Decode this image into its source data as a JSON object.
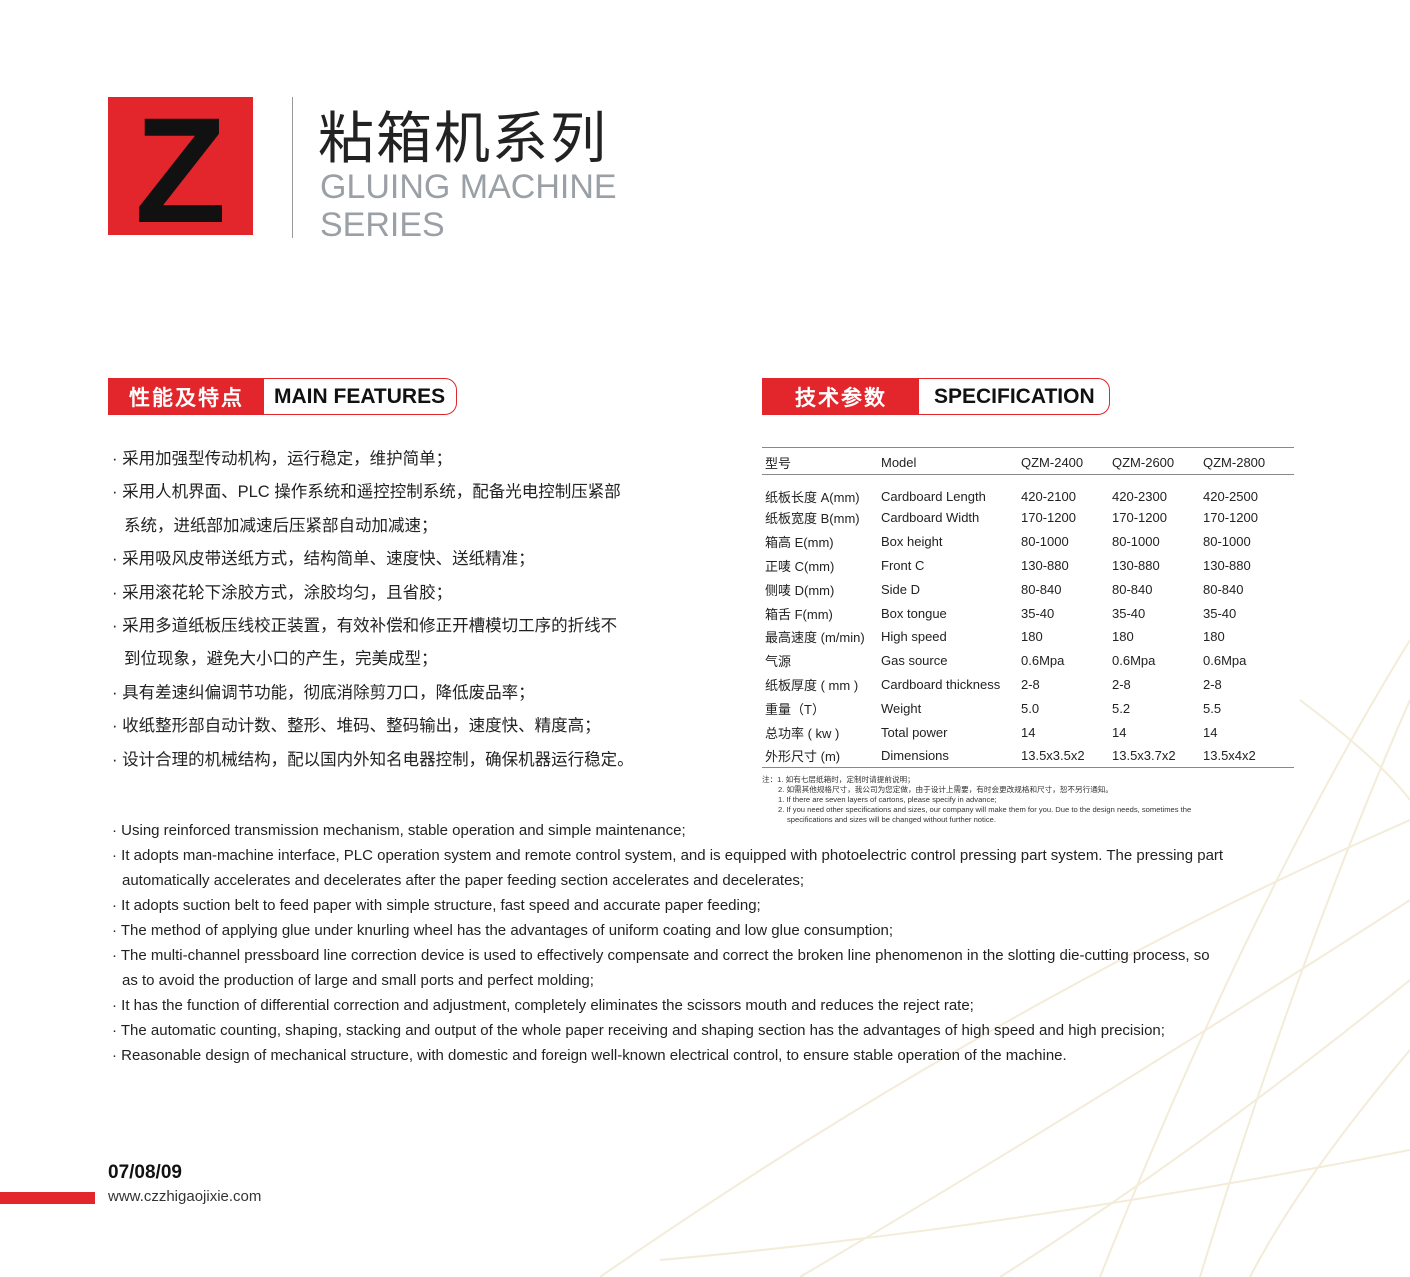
{
  "header": {
    "logo_letter": "Z",
    "title_cn": "粘箱机系列",
    "title_en_line1": "GLUING MACHINE",
    "title_en_line2": "SERIES"
  },
  "features": {
    "label_cn": "性能及特点",
    "label_en": "MAIN FEATURES",
    "items_cn": [
      [
        "· 采用加强型传动机构，运行稳定，维护简单；"
      ],
      [
        "· 采用人机界面、PLC 操作系统和遥控控制系统，配备光电控制压紧部",
        "系统，进纸部加减速后压紧部自动加减速；"
      ],
      [
        "· 采用吸风皮带送纸方式，结构简单、速度快、送纸精准；"
      ],
      [
        "· 采用滚花轮下涂胶方式，涂胶均匀，且省胶；"
      ],
      [
        "· 采用多道纸板压线校正装置，有效补偿和修正开槽模切工序的折线不",
        "到位现象，避免大小口的产生，完美成型；"
      ],
      [
        "· 具有差速纠偏调节功能，彻底消除剪刀口，降低废品率；"
      ],
      [
        "· 收纸整形部自动计数、整形、堆码、整码输出，速度快、精度高；"
      ],
      [
        "· 设计合理的机械结构，配以国内外知名电器控制，确保机器运行稳定。"
      ]
    ],
    "items_en": [
      [
        "· Using reinforced transmission mechanism, stable operation and simple maintenance;"
      ],
      [
        "· It adopts man-machine interface, PLC operation system and remote control system, and is equipped with photoelectric control pressing part system. The pressing part",
        "automatically accelerates and decelerates after the paper feeding section accelerates and decelerates;"
      ],
      [
        "· It adopts suction belt to feed paper with simple structure, fast speed and accurate paper feeding;"
      ],
      [
        "· The method of applying glue under knurling wheel has the advantages of uniform coating and low glue consumption;"
      ],
      [
        "· The multi-channel pressboard line correction device is used to effectively compensate and correct the broken line phenomenon in the slotting die-cutting process, so",
        "as to avoid the production of large and small ports and perfect molding;"
      ],
      [
        "· It has the function of differential correction and adjustment, completely eliminates the scissors mouth and reduces the reject rate;"
      ],
      [
        "· The automatic counting, shaping, stacking and output of the whole paper receiving and shaping section has the advantages of high speed and high precision;"
      ],
      [
        "· Reasonable design of mechanical structure, with domestic and foreign well-known electrical control, to ensure stable operation of the machine."
      ]
    ]
  },
  "spec": {
    "label_cn": "技术参数",
    "label_en": "SPECIFICATION",
    "header": [
      "型号",
      "Model",
      "QZM-2400",
      "QZM-2600",
      "QZM-2800"
    ],
    "rows": [
      [
        "纸板长度 A(mm)",
        "Cardboard Length",
        "420-2100",
        "420-2300",
        "420-2500"
      ],
      [
        "纸板宽度 B(mm)",
        "Cardboard Width",
        "170-1200",
        "170-1200",
        "170-1200"
      ],
      [
        "箱高 E(mm)",
        "Box height",
        "80-1000",
        "80-1000",
        "80-1000"
      ],
      [
        "正唛 C(mm)",
        "Front C",
        "130-880",
        "130-880",
        "130-880"
      ],
      [
        "侧唛 D(mm)",
        "Side D",
        "80-840",
        "80-840",
        "80-840"
      ],
      [
        "箱舌 F(mm)",
        "Box tongue",
        "35-40",
        "35-40",
        "35-40"
      ],
      [
        "最高速度 (m/min)",
        "High speed",
        "180",
        "180",
        "180"
      ],
      [
        "气源",
        "Gas source",
        "0.6Mpa",
        "0.6Mpa",
        "0.6Mpa"
      ],
      [
        "纸板厚度 ( mm )",
        "Cardboard thickness",
        "2-8",
        "2-8",
        "2-8"
      ],
      [
        "重量（T）",
        "Weight",
        "5.0",
        "5.2",
        "5.5"
      ],
      [
        "总功率 ( kw )",
        "Total power",
        "14",
        "14",
        "14"
      ],
      [
        "外形尺寸 (m)",
        "Dimensions",
        "13.5x3.5x2",
        "13.5x3.7x2",
        "13.5x4x2"
      ]
    ],
    "notes": [
      "注：1. 如有七层纸箱时，定制时请提前说明；",
      "2. 如需其他规格尺寸，我公司为您定做，由于设计上需要，有时会更改规格和尺寸，恕不另行通知。",
      "1. If there are seven layers of cartons, please specify in advance;",
      "2. If you need other specifications and sizes, our company will make them for you. Due to the design needs, sometimes the",
      "specifications  and sizes will be changed without further notice."
    ]
  },
  "footer": {
    "pages": "07/08/09",
    "url": "www.czzhigaojixie.com"
  },
  "colors": {
    "accent": "#e2262b",
    "subtitle_gray": "#9aa0a6"
  }
}
